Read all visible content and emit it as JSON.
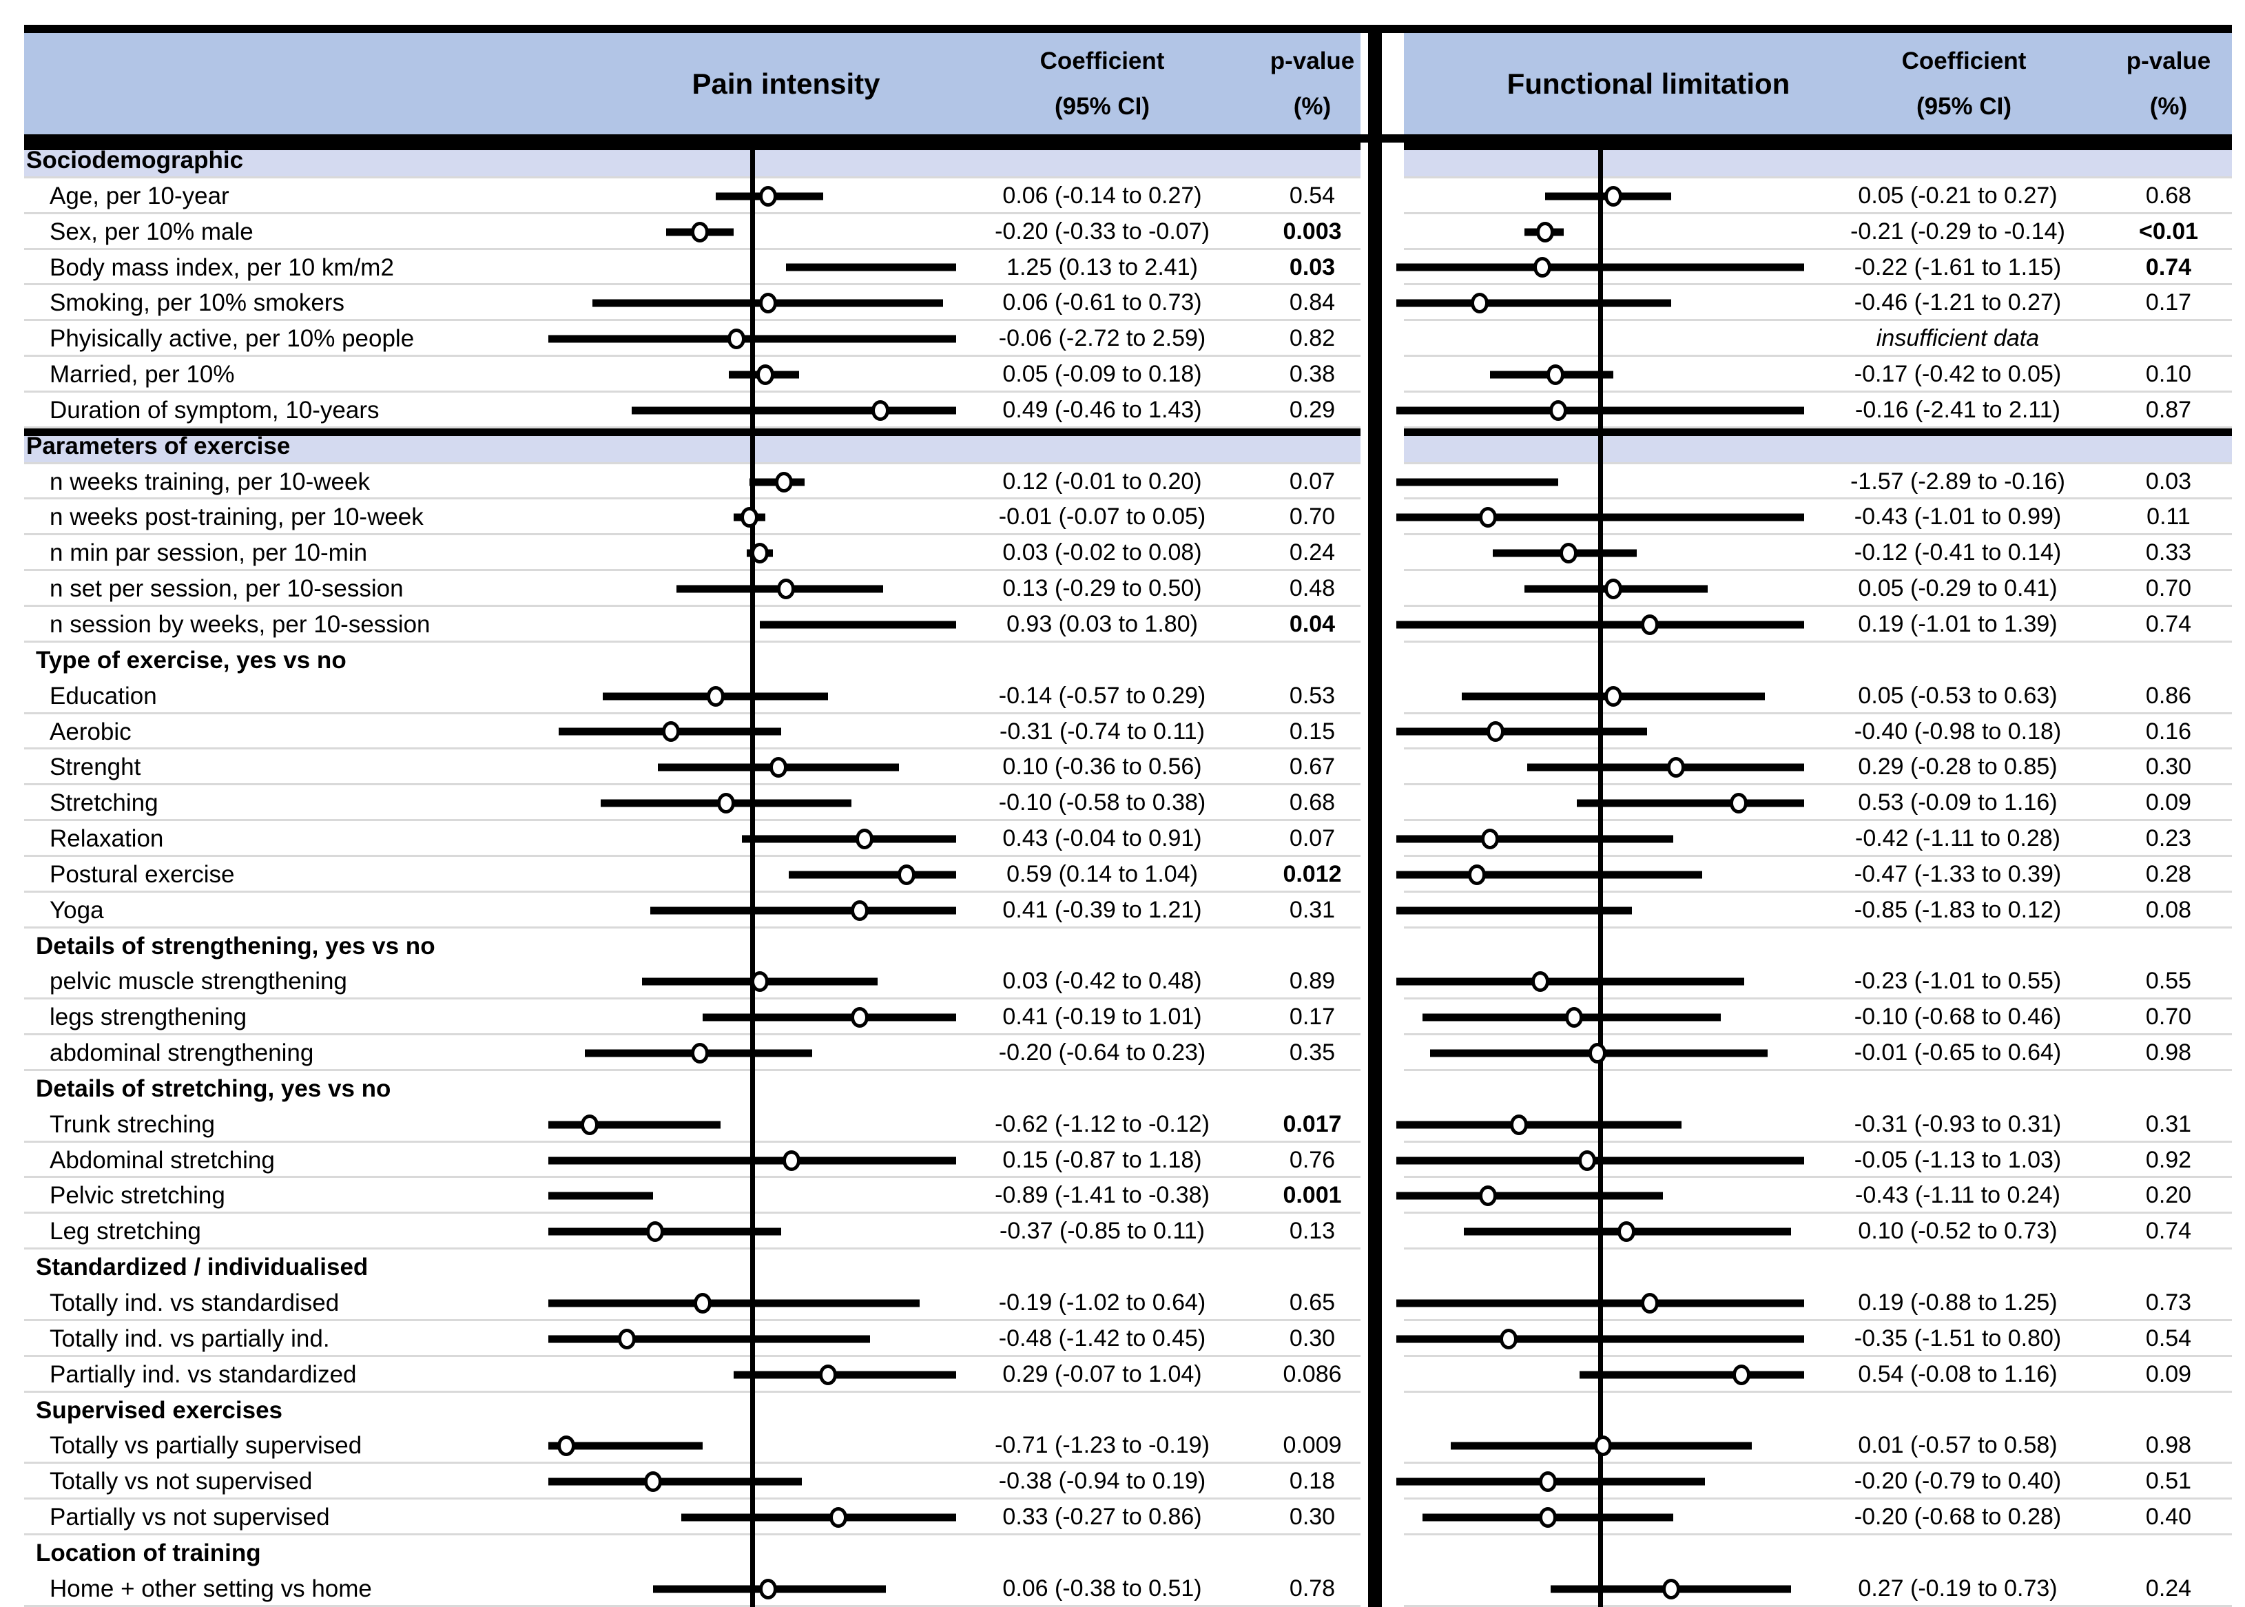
{
  "header": {
    "pain": {
      "title": "Pain intensity",
      "coef_line1": "Coefficient",
      "coef_line2": "(95% CI)",
      "p_line1": "p-value",
      "p_line2": "(%)"
    },
    "func": {
      "title": "Functional limitation",
      "coef_line1": "Coefficient",
      "coef_line2": "(95% CI)",
      "p_line1": "p-value",
      "p_line2": "(%)"
    }
  },
  "colors": {
    "header_bg": "#b2c5e6",
    "section_bg": "#d4daf0",
    "divider": "#d9d9d9",
    "marker_fill": "#ffffff",
    "line_black": "#000000"
  },
  "chart_data": {
    "type": "forest",
    "panels": [
      "Pain intensity",
      "Functional limitation"
    ],
    "xlim": [
      -0.78,
      0.78
    ],
    "zero_reference": 0,
    "rows": [
      {
        "label": "Sociodemographic",
        "kind": "section",
        "pain": null,
        "func": null
      },
      {
        "label": "Age, per 10-year",
        "kind": "item",
        "pain": {
          "coef": 0.06,
          "ci": [
            -0.14,
            0.27
          ],
          "text": "0.06 (-0.14 to 0.27)",
          "p": "0.54",
          "p_bold": false
        },
        "func": {
          "coef": 0.05,
          "ci": [
            -0.21,
            0.27
          ],
          "text": "0.05 (-0.21 to 0.27)",
          "p": "0.68",
          "p_bold": false
        }
      },
      {
        "label": "Sex, per 10% male",
        "kind": "item",
        "pain": {
          "coef": -0.2,
          "ci": [
            -0.33,
            -0.07
          ],
          "text": "-0.20 (-0.33 to -0.07)",
          "p": "0.003",
          "p_bold": true
        },
        "func": {
          "coef": -0.21,
          "ci": [
            -0.29,
            -0.14
          ],
          "text": "-0.21 (-0.29 to -0.14)",
          "p": "<0.01",
          "p_bold": true
        }
      },
      {
        "label": "Body mass index, per 10 km/m2",
        "kind": "item",
        "pain": {
          "coef": 1.25,
          "ci": [
            0.13,
            2.41
          ],
          "text": "1.25 (0.13 to 2.41)",
          "p": "0.03",
          "p_bold": true
        },
        "func": {
          "coef": -0.22,
          "ci": [
            -1.61,
            1.15
          ],
          "text": "-0.22 (-1.61 to 1.15)",
          "p": "0.74",
          "p_bold": true
        }
      },
      {
        "label": "Smoking, per 10% smokers",
        "kind": "item",
        "pain": {
          "coef": 0.06,
          "ci": [
            -0.61,
            0.73
          ],
          "text": "0.06 (-0.61 to 0.73)",
          "p": "0.84",
          "p_bold": false
        },
        "func": {
          "coef": -0.46,
          "ci": [
            -1.21,
            0.27
          ],
          "text": "-0.46 (-1.21 to 0.27)",
          "p": "0.17",
          "p_bold": false
        }
      },
      {
        "label": "Phyisically active, per 10% people",
        "kind": "item",
        "pain": {
          "coef": -0.06,
          "ci": [
            -2.72,
            2.59
          ],
          "text": "-0.06 (-2.72 to 2.59)",
          "p": "0.82",
          "p_bold": false
        },
        "func": {
          "note": "insufficient data"
        }
      },
      {
        "label": "Married, per 10%",
        "kind": "item",
        "pain": {
          "coef": 0.05,
          "ci": [
            -0.09,
            0.18
          ],
          "text": "0.05 (-0.09 to 0.18)",
          "p": "0.38",
          "p_bold": false
        },
        "func": {
          "coef": -0.17,
          "ci": [
            -0.42,
            0.05
          ],
          "text": "-0.17 (-0.42 to 0.05)",
          "p": "0.10",
          "p_bold": false
        }
      },
      {
        "label": "Duration of symptom, 10-years",
        "kind": "item",
        "pain": {
          "coef": 0.49,
          "ci": [
            -0.46,
            1.43
          ],
          "text": "0.49 (-0.46 to 1.43)",
          "p": "0.29",
          "p_bold": false
        },
        "func": {
          "coef": -0.16,
          "ci": [
            -2.41,
            2.11
          ],
          "text": "-0.16 (-2.41 to 2.11)",
          "p": "0.87",
          "p_bold": false
        }
      },
      {
        "label": "Parameters of exercise",
        "kind": "section",
        "pain": null,
        "func": null
      },
      {
        "label": "n weeks training, per 10-week",
        "kind": "item",
        "pain": {
          "coef": 0.12,
          "ci": [
            -0.01,
            0.2
          ],
          "text": "0.12 (-0.01 to 0.20)",
          "p": "0.07",
          "p_bold": false
        },
        "func": {
          "coef": -1.57,
          "ci": [
            -2.89,
            -0.16
          ],
          "text": "-1.57 (-2.89 to -0.16)",
          "p": "0.03",
          "p_bold": false
        }
      },
      {
        "label": "n weeks post-training, per 10-week",
        "kind": "item",
        "pain": {
          "coef": -0.01,
          "ci": [
            -0.07,
            0.05
          ],
          "text": "-0.01 (-0.07 to 0.05)",
          "p": "0.70",
          "p_bold": false
        },
        "func": {
          "coef": -0.43,
          "ci": [
            -1.01,
            0.99
          ],
          "text": "-0.43 (-1.01 to 0.99)",
          "p": "0.11",
          "p_bold": false
        }
      },
      {
        "label": "n min par session, per 10-min",
        "kind": "item",
        "pain": {
          "coef": 0.03,
          "ci": [
            -0.02,
            0.08
          ],
          "text": "0.03 (-0.02 to 0.08)",
          "p": "0.24",
          "p_bold": false
        },
        "func": {
          "coef": -0.12,
          "ci": [
            -0.41,
            0.14
          ],
          "text": "-0.12 (-0.41 to 0.14)",
          "p": "0.33",
          "p_bold": false
        }
      },
      {
        "label": "n set per session, per 10-session",
        "kind": "item",
        "pain": {
          "coef": 0.13,
          "ci": [
            -0.29,
            0.5
          ],
          "text": "0.13 (-0.29 to 0.50)",
          "p": "0.48",
          "p_bold": false
        },
        "func": {
          "coef": 0.05,
          "ci": [
            -0.29,
            0.41
          ],
          "text": "0.05 (-0.29 to 0.41)",
          "p": "0.70",
          "p_bold": false
        }
      },
      {
        "label": "n session by weeks, per 10-session",
        "kind": "item",
        "pain": {
          "coef": 0.93,
          "ci": [
            0.03,
            1.8
          ],
          "text": "0.93 (0.03 to 1.80)",
          "p": "0.04",
          "p_bold": true
        },
        "func": {
          "coef": 0.19,
          "ci": [
            -1.01,
            1.39
          ],
          "text": "0.19 (-1.01 to 1.39)",
          "p": "0.74",
          "p_bold": false
        }
      },
      {
        "label": "Type of exercise, yes vs no",
        "kind": "subsection",
        "pain": null,
        "func": null
      },
      {
        "label": "Education",
        "kind": "item",
        "pain": {
          "coef": -0.14,
          "ci": [
            -0.57,
            0.29
          ],
          "text": "-0.14 (-0.57 to 0.29)",
          "p": "0.53",
          "p_bold": false
        },
        "func": {
          "coef": 0.05,
          "ci": [
            -0.53,
            0.63
          ],
          "text": "0.05 (-0.53 to 0.63)",
          "p": "0.86",
          "p_bold": false
        }
      },
      {
        "label": "Aerobic",
        "kind": "item",
        "pain": {
          "coef": -0.31,
          "ci": [
            -0.74,
            0.11
          ],
          "text": "-0.31 (-0.74 to 0.11)",
          "p": "0.15",
          "p_bold": false
        },
        "func": {
          "coef": -0.4,
          "ci": [
            -0.98,
            0.18
          ],
          "text": "-0.40 (-0.98 to 0.18)",
          "p": "0.16",
          "p_bold": false
        }
      },
      {
        "label": "Strenght",
        "kind": "item",
        "pain": {
          "coef": 0.1,
          "ci": [
            -0.36,
            0.56
          ],
          "text": "0.10 (-0.36 to 0.56)",
          "p": "0.67",
          "p_bold": false
        },
        "func": {
          "coef": 0.29,
          "ci": [
            -0.28,
            0.85
          ],
          "text": "0.29 (-0.28 to 0.85)",
          "p": "0.30",
          "p_bold": false
        }
      },
      {
        "label": "Stretching",
        "kind": "item",
        "pain": {
          "coef": -0.1,
          "ci": [
            -0.58,
            0.38
          ],
          "text": "-0.10 (-0.58 to 0.38)",
          "p": "0.68",
          "p_bold": false
        },
        "func": {
          "coef": 0.53,
          "ci": [
            -0.09,
            1.16
          ],
          "text": "0.53 (-0.09 to 1.16)",
          "p": "0.09",
          "p_bold": false
        }
      },
      {
        "label": "Relaxation",
        "kind": "item",
        "pain": {
          "coef": 0.43,
          "ci": [
            -0.04,
            0.91
          ],
          "text": "0.43 (-0.04 to 0.91)",
          "p": "0.07",
          "p_bold": false
        },
        "func": {
          "coef": -0.42,
          "ci": [
            -1.11,
            0.28
          ],
          "text": "-0.42 (-1.11 to 0.28)",
          "p": "0.23",
          "p_bold": false
        }
      },
      {
        "label": "Postural exercise",
        "kind": "item",
        "pain": {
          "coef": 0.59,
          "ci": [
            0.14,
            1.04
          ],
          "text": "0.59 (0.14 to 1.04)",
          "p": "0.012",
          "p_bold": true
        },
        "func": {
          "coef": -0.47,
          "ci": [
            -1.33,
            0.39
          ],
          "text": "-0.47 (-1.33 to 0.39)",
          "p": "0.28",
          "p_bold": false
        }
      },
      {
        "label": "Yoga",
        "kind": "item",
        "pain": {
          "coef": 0.41,
          "ci": [
            -0.39,
            1.21
          ],
          "text": "0.41 (-0.39 to 1.21)",
          "p": "0.31",
          "p_bold": false
        },
        "func": {
          "coef": -0.85,
          "ci": [
            -1.83,
            0.12
          ],
          "text": "-0.85 (-1.83 to 0.12)",
          "p": "0.08",
          "p_bold": false
        }
      },
      {
        "label": "Details of strengthening, yes vs no",
        "kind": "subsection",
        "pain": null,
        "func": null
      },
      {
        "label": "pelvic muscle strengthening",
        "kind": "item",
        "pain": {
          "coef": 0.03,
          "ci": [
            -0.42,
            0.48
          ],
          "text": "0.03 (-0.42 to 0.48)",
          "p": "0.89",
          "p_bold": false
        },
        "func": {
          "coef": -0.23,
          "ci": [
            -1.01,
            0.55
          ],
          "text": "-0.23 (-1.01 to 0.55)",
          "p": "0.55",
          "p_bold": false
        }
      },
      {
        "label": "legs strengthening",
        "kind": "item",
        "pain": {
          "coef": 0.41,
          "ci": [
            -0.19,
            1.01
          ],
          "text": "0.41 (-0.19 to 1.01)",
          "p": "0.17",
          "p_bold": false
        },
        "func": {
          "coef": -0.1,
          "ci": [
            -0.68,
            0.46
          ],
          "text": "-0.10 (-0.68 to 0.46)",
          "p": "0.70",
          "p_bold": false
        }
      },
      {
        "label": "abdominal strengthening",
        "kind": "item",
        "pain": {
          "coef": -0.2,
          "ci": [
            -0.64,
            0.23
          ],
          "text": "-0.20 (-0.64 to 0.23)",
          "p": "0.35",
          "p_bold": false
        },
        "func": {
          "coef": -0.01,
          "ci": [
            -0.65,
            0.64
          ],
          "text": "-0.01 (-0.65 to 0.64)",
          "p": "0.98",
          "p_bold": false
        }
      },
      {
        "label": "Details of stretching, yes vs no",
        "kind": "subsection",
        "pain": null,
        "func": null
      },
      {
        "label": "Trunk streching",
        "kind": "item",
        "pain": {
          "coef": -0.62,
          "ci": [
            -1.12,
            -0.12
          ],
          "text": "-0.62 (-1.12 to -0.12)",
          "p": "0.017",
          "p_bold": true
        },
        "func": {
          "coef": -0.31,
          "ci": [
            -0.93,
            0.31
          ],
          "text": "-0.31 (-0.93 to 0.31)",
          "p": "0.31",
          "p_bold": false
        }
      },
      {
        "label": "Abdominal stretching",
        "kind": "item",
        "pain": {
          "coef": 0.15,
          "ci": [
            -0.87,
            1.18
          ],
          "text": "0.15 (-0.87 to 1.18)",
          "p": "0.76",
          "p_bold": false
        },
        "func": {
          "coef": -0.05,
          "ci": [
            -1.13,
            1.03
          ],
          "text": "-0.05 (-1.13 to 1.03)",
          "p": "0.92",
          "p_bold": false
        }
      },
      {
        "label": "Pelvic stretching",
        "kind": "item",
        "pain": {
          "coef": -0.89,
          "ci": [
            -1.41,
            -0.38
          ],
          "text": "-0.89 (-1.41 to -0.38)",
          "p": "0.001",
          "p_bold": true
        },
        "func": {
          "coef": -0.43,
          "ci": [
            -1.11,
            0.24
          ],
          "text": "-0.43 (-1.11 to 0.24)",
          "p": "0.20",
          "p_bold": false
        }
      },
      {
        "label": "Leg stretching",
        "kind": "item",
        "pain": {
          "coef": -0.37,
          "ci": [
            -0.85,
            0.11
          ],
          "text": "-0.37 (-0.85 to 0.11)",
          "p": "0.13",
          "p_bold": false
        },
        "func": {
          "coef": 0.1,
          "ci": [
            -0.52,
            0.73
          ],
          "text": "0.10 (-0.52 to 0.73)",
          "p": "0.74",
          "p_bold": false
        }
      },
      {
        "label": "Standardized / individualised",
        "kind": "subsection",
        "pain": null,
        "func": null
      },
      {
        "label": "Totally ind. vs standardised",
        "kind": "item",
        "pain": {
          "coef": -0.19,
          "ci": [
            -1.02,
            0.64
          ],
          "text": "-0.19 (-1.02 to 0.64)",
          "p": "0.65",
          "p_bold": false
        },
        "func": {
          "coef": 0.19,
          "ci": [
            -0.88,
            1.25
          ],
          "text": "0.19 (-0.88 to 1.25)",
          "p": "0.73",
          "p_bold": false
        }
      },
      {
        "label": "Totally ind. vs partially ind.",
        "kind": "item",
        "pain": {
          "coef": -0.48,
          "ci": [
            -1.42,
            0.45
          ],
          "text": "-0.48 (-1.42 to 0.45)",
          "p": "0.30",
          "p_bold": false
        },
        "func": {
          "coef": -0.35,
          "ci": [
            -1.51,
            0.8
          ],
          "text": "-0.35 (-1.51 to 0.80)",
          "p": "0.54",
          "p_bold": false
        }
      },
      {
        "label": "Partially ind. vs standardized",
        "kind": "item",
        "pain": {
          "coef": 0.29,
          "ci": [
            -0.07,
            1.04
          ],
          "text": "0.29 (-0.07 to 1.04)",
          "p": "0.086",
          "p_bold": false
        },
        "func": {
          "coef": 0.54,
          "ci": [
            -0.08,
            1.16
          ],
          "text": "0.54 (-0.08 to 1.16)",
          "p": "0.09",
          "p_bold": false
        }
      },
      {
        "label": "Supervised exercises",
        "kind": "subsection",
        "pain": null,
        "func": null
      },
      {
        "label": "Totally vs partially supervised",
        "kind": "item",
        "pain": {
          "coef": -0.71,
          "ci": [
            -1.23,
            -0.19
          ],
          "text": "-0.71 (-1.23 to -0.19)",
          "p": "0.009",
          "p_bold": false
        },
        "func": {
          "coef": 0.01,
          "ci": [
            -0.57,
            0.58
          ],
          "text": "0.01 (-0.57 to 0.58)",
          "p": "0.98",
          "p_bold": false
        }
      },
      {
        "label": "Totally vs not supervised",
        "kind": "item",
        "pain": {
          "coef": -0.38,
          "ci": [
            -0.94,
            0.19
          ],
          "text": "-0.38 (-0.94 to 0.19)",
          "p": "0.18",
          "p_bold": false
        },
        "func": {
          "coef": -0.2,
          "ci": [
            -0.79,
            0.4
          ],
          "text": "-0.20 (-0.79 to 0.40)",
          "p": "0.51",
          "p_bold": false
        }
      },
      {
        "label": "Partially vs not supervised",
        "kind": "item",
        "pain": {
          "coef": 0.33,
          "ci": [
            -0.27,
            0.86
          ],
          "text": "0.33 (-0.27 to 0.86)",
          "p": "0.30",
          "p_bold": false
        },
        "func": {
          "coef": -0.2,
          "ci": [
            -0.68,
            0.28
          ],
          "text": "-0.20 (-0.68 to 0.28)",
          "p": "0.40",
          "p_bold": false
        }
      },
      {
        "label": "Location of training",
        "kind": "subsection",
        "pain": null,
        "func": null
      },
      {
        "label": "Home + other setting vs home",
        "kind": "item",
        "pain": {
          "coef": 0.06,
          "ci": [
            -0.38,
            0.51
          ],
          "text": "0.06 (-0.38 to 0.51)",
          "p": "0.78",
          "p_bold": false
        },
        "func": {
          "coef": 0.27,
          "ci": [
            -0.19,
            0.73
          ],
          "text": "0.27 (-0.19 to 0.73)",
          "p": "0.24",
          "p_bold": false
        }
      }
    ]
  }
}
